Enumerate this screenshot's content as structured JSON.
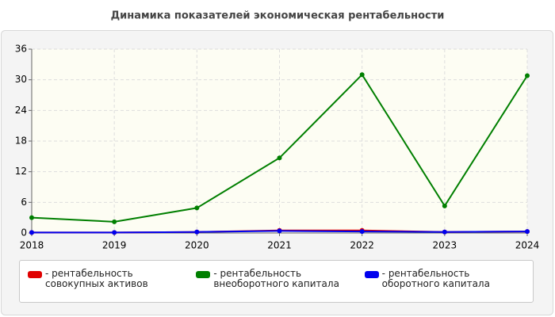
{
  "chart_data": {
    "type": "line",
    "title": "Динамика показателей экономическая рентабельности",
    "x": [
      2018,
      2019,
      2020,
      2021,
      2022,
      2023,
      2024
    ],
    "xlim": [
      2018,
      2024
    ],
    "xticks": [
      2018,
      2019,
      2020,
      2021,
      2022,
      2023,
      2024
    ],
    "ylim": [
      0,
      36
    ],
    "yticks": [
      0,
      6,
      12,
      18,
      24,
      30,
      36
    ],
    "grid": true,
    "legend": "bottom",
    "series": [
      {
        "name": "рентабельность совокупных активов",
        "color": "#e00000",
        "values": [
          0.1,
          0.1,
          0.2,
          0.5,
          0.5,
          0.2,
          0.3
        ]
      },
      {
        "name": "рентабельность внеоборотного капитала",
        "color": "#007f00",
        "values": [
          3.0,
          2.2,
          4.9,
          14.7,
          31.0,
          5.3,
          30.8
        ]
      },
      {
        "name": "рентабельность оборотного капитала",
        "color": "#0000ee",
        "values": [
          0.1,
          0.1,
          0.2,
          0.4,
          0.3,
          0.2,
          0.3
        ]
      }
    ]
  }
}
